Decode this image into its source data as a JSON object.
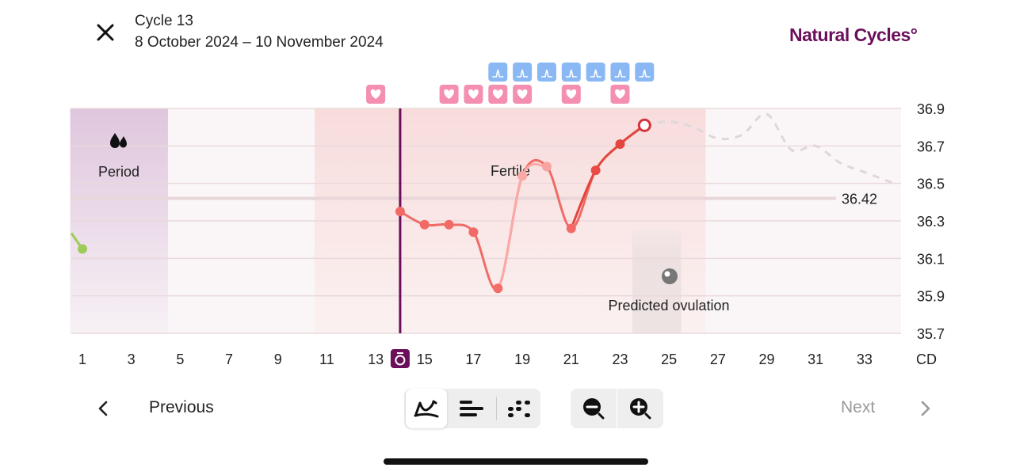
{
  "header": {
    "close_icon": "close-icon",
    "title": "Cycle 13",
    "dates": "8 October 2024 – 10 November 2024",
    "logo": "Natural Cycles°",
    "logo_color": "#6b0f5a"
  },
  "chart_data": {
    "type": "line",
    "xlabel": "CD",
    "x_ticks": [
      1,
      3,
      5,
      7,
      9,
      11,
      13,
      15,
      17,
      19,
      21,
      23,
      25,
      27,
      29,
      31,
      33
    ],
    "y_ticks": [
      36.9,
      36.7,
      36.5,
      36.3,
      36.1,
      35.9,
      35.7
    ],
    "ylim": [
      35.7,
      36.9
    ],
    "xlim": [
      0.5,
      34.5
    ],
    "grid": true,
    "today_marker_day": 14,
    "previous_cycle_point": {
      "x": 1,
      "y": 36.15,
      "color": "#9dcb5a"
    },
    "series": [
      {
        "points": [
          {
            "x": 14,
            "y": 36.35
          },
          {
            "x": 15,
            "y": 36.28
          },
          {
            "x": 16,
            "y": 36.28
          },
          {
            "x": 17,
            "y": 36.24
          },
          {
            "x": 18,
            "y": 35.94
          },
          {
            "x": 19,
            "y": 36.54
          },
          {
            "x": 20,
            "y": 36.59
          },
          {
            "x": 21,
            "y": 36.26
          },
          {
            "x": 22,
            "y": 36.57
          },
          {
            "x": 23,
            "y": 36.71
          },
          {
            "x": 24,
            "y": 36.81
          }
        ],
        "color": "#f06b66"
      },
      {
        "style": "dashed-prediction",
        "points": [
          {
            "x": 24,
            "y": 36.81
          },
          {
            "x": 25,
            "y": 36.83
          },
          {
            "x": 26,
            "y": 36.8
          },
          {
            "x": 27,
            "y": 36.74
          },
          {
            "x": 28,
            "y": 36.76
          },
          {
            "x": 29,
            "y": 36.87
          },
          {
            "x": 30,
            "y": 36.68
          },
          {
            "x": 31,
            "y": 36.7
          },
          {
            "x": 32,
            "y": 36.61
          },
          {
            "x": 33,
            "y": 36.56
          },
          {
            "x": 34.2,
            "y": 36.5
          }
        ],
        "color": "#e0d6d8"
      }
    ],
    "coverline": {
      "value": 36.42,
      "label": "36.42"
    },
    "zones": [
      {
        "name": "period",
        "label": "Period",
        "from": 0.5,
        "to": 4.5,
        "color": "#dfc6dd",
        "icon": "drops-icon"
      },
      {
        "name": "fertile",
        "label": "Fertile",
        "from": 10.5,
        "to": 26.5,
        "color": "#f8dcdc"
      },
      {
        "name": "predicted-ovulation",
        "label": "Predicted ovulation",
        "from": 23.5,
        "to": 25.5,
        "color": "#e6dcdc",
        "icon": "ovulation-icon"
      }
    ],
    "lh_tests_days": [
      18,
      19,
      20,
      21,
      22,
      23,
      24
    ],
    "intercourse_days": [
      13,
      16,
      17,
      18,
      19,
      21,
      23
    ],
    "lh_color": "#8ab8f5",
    "heart_color": "#f48fb1",
    "today_color": "#6b0f5a"
  },
  "footer": {
    "previous": "Previous",
    "next": "Next",
    "view_modes": [
      "graph-view",
      "bar-view",
      "dots-view"
    ],
    "active_view": "graph-view",
    "zoom_out": "zoom-out",
    "zoom_in": "zoom-in"
  }
}
